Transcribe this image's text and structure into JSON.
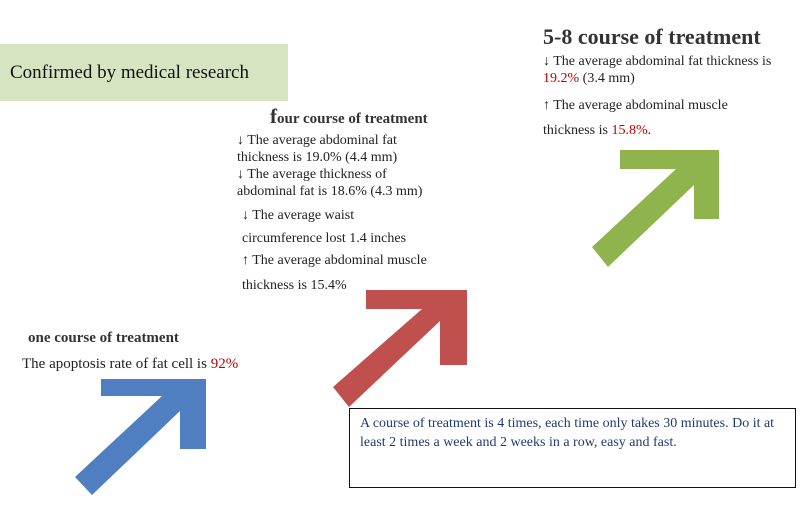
{
  "banner": {
    "text": "Confirmed by medical research"
  },
  "stage_one": {
    "title": "one course of treatment",
    "line_prefix": "The apoptosis rate of fat cell is ",
    "line_value": "92%"
  },
  "stage_four": {
    "title_initial": "f",
    "title_rest": "our course of treatment",
    "item1_symbol": "↓",
    "item1_line1": " The average abdominal fat",
    "item1_line2": "thickness is 19.0% (4.4 mm)",
    "item2_symbol": "↓",
    "item2_line1": " The average thickness of",
    "item2_line2": "abdominal fat is 18.6% (4.3 mm)",
    "item3_symbol": "↓",
    "item3_line1": " The average waist",
    "item3_line2": "circumference lost 1.4 inches",
    "item4_symbol": "↑",
    "item4_line1": " The average abdominal muscle",
    "item4_line2": "thickness is 15.4%"
  },
  "stage_five_eight": {
    "title": "5-8 course of treatment",
    "item1_symbol": "↓",
    "item1_line1": " The average abdominal fat thickness is",
    "item1_value": "19.2%",
    "item1_suffix": " (3.4 mm)",
    "item2_symbol": "↑",
    "item2_line1": " The average abdominal muscle",
    "item2_line2_prefix": "thickness is ",
    "item2_value": "15.8%",
    "item2_line2_suffix": "."
  },
  "note": {
    "text": "A course of treatment is 4 times, each time only takes 30 minutes. Do it at least 2 times a week and 2 weeks in a row, easy and fast."
  },
  "colors": {
    "arrow_one": "#4f7fc0",
    "arrow_four": "#c0504d",
    "arrow_five_eight": "#8fb44d",
    "banner_bg": "#d6e4c2",
    "highlight": "#c00000",
    "note_text": "#1f3b73"
  }
}
